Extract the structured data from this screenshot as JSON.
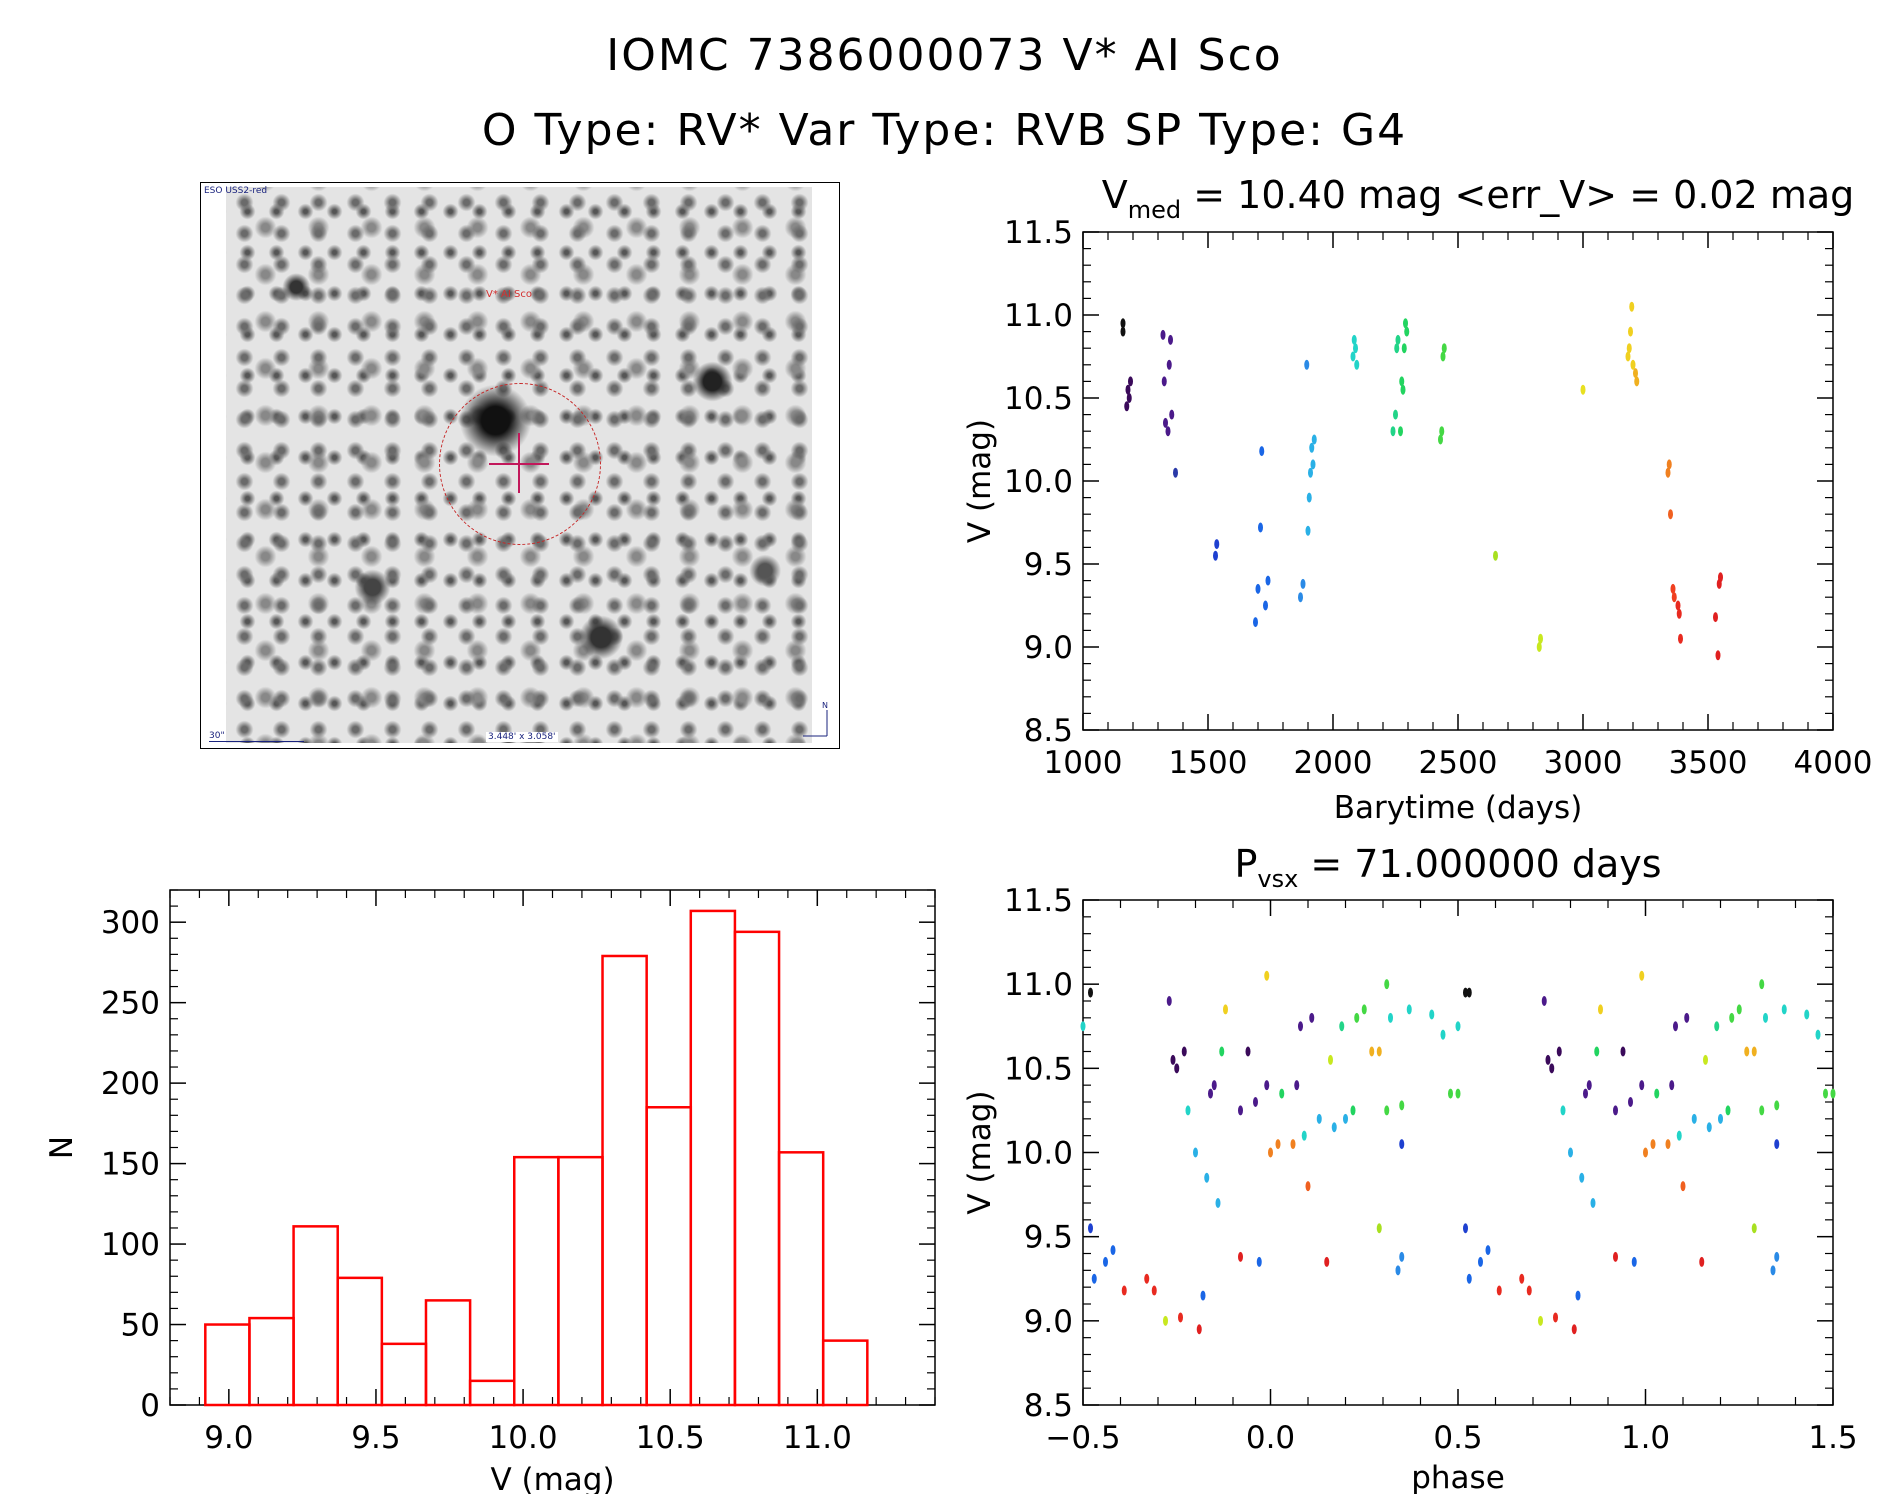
{
  "figure": {
    "title_line1": "IOMC 7386000073    V* AI Sco",
    "title_line2": "O Type: RV*   Var Type: RVB   SP Type: G4"
  },
  "finder_chart": {
    "header": "ESO USS2-red",
    "object_label": "V* AI Sco",
    "scale_label": "30\"",
    "fov_label": "3.448' x 3.058'",
    "north_label": "N"
  },
  "chart_data": [
    {
      "type": "scatter",
      "panel": "light-curve",
      "title_prefix": "V",
      "title_sub": "med",
      "title_rest": " = 10.40 mag <err_V> = 0.02 mag",
      "xlabel": "Barytime (days)",
      "ylabel": "V (mag)",
      "xlim": [
        1000,
        4000
      ],
      "ylim": [
        11.5,
        8.5
      ],
      "y_inverted": true,
      "xticks": [
        "1000",
        "1500",
        "2000",
        "2500",
        "3000",
        "3500",
        "4000"
      ],
      "yticks": [
        "8.5",
        "9.0",
        "9.5",
        "10.0",
        "10.5",
        "11.0",
        "11.5"
      ],
      "grid": false,
      "colors_note": "points colored by time, purple (early) to red (late)",
      "points": [
        [
          1160,
          10.95,
          "#111111"
        ],
        [
          1160,
          10.9,
          "#111111"
        ],
        [
          1175,
          10.45,
          "#3a0a5a"
        ],
        [
          1180,
          10.55,
          "#3a0a5a"
        ],
        [
          1185,
          10.5,
          "#3a0a5a"
        ],
        [
          1190,
          10.6,
          "#3a0a5a"
        ],
        [
          1320,
          10.88,
          "#4b1a8a"
        ],
        [
          1325,
          10.6,
          "#4b1a8a"
        ],
        [
          1330,
          10.35,
          "#4b1a8a"
        ],
        [
          1340,
          10.3,
          "#4b1a8a"
        ],
        [
          1345,
          10.7,
          "#4b1a8a"
        ],
        [
          1350,
          10.85,
          "#4b1a8a"
        ],
        [
          1355,
          10.4,
          "#4b1a8a"
        ],
        [
          1370,
          10.05,
          "#2a3aa8"
        ],
        [
          1530,
          9.55,
          "#1e40d0"
        ],
        [
          1535,
          9.62,
          "#1e40d0"
        ],
        [
          1690,
          9.15,
          "#1a66e6"
        ],
        [
          1700,
          9.35,
          "#1a66e6"
        ],
        [
          1710,
          9.72,
          "#1a66e6"
        ],
        [
          1715,
          10.18,
          "#1a66e6"
        ],
        [
          1730,
          9.25,
          "#1a66e6"
        ],
        [
          1740,
          9.4,
          "#1a66e6"
        ],
        [
          1870,
          9.3,
          "#2a8ae6"
        ],
        [
          1880,
          9.38,
          "#2a8ae6"
        ],
        [
          1895,
          10.7,
          "#2a8ae6"
        ],
        [
          1900,
          9.7,
          "#2ab0e6"
        ],
        [
          1905,
          9.9,
          "#2ab0e6"
        ],
        [
          1910,
          10.05,
          "#2ab0e6"
        ],
        [
          1915,
          10.2,
          "#2ab0e6"
        ],
        [
          1920,
          10.1,
          "#2ab0e6"
        ],
        [
          1925,
          10.25,
          "#2ab0e6"
        ],
        [
          2080,
          10.75,
          "#22d4c8"
        ],
        [
          2085,
          10.85,
          "#22d4c8"
        ],
        [
          2090,
          10.8,
          "#22d4c8"
        ],
        [
          2095,
          10.7,
          "#22d4c8"
        ],
        [
          2240,
          10.3,
          "#22d488"
        ],
        [
          2250,
          10.4,
          "#22d488"
        ],
        [
          2255,
          10.8,
          "#22d488"
        ],
        [
          2260,
          10.85,
          "#22d488"
        ],
        [
          2270,
          10.3,
          "#22d460"
        ],
        [
          2275,
          10.6,
          "#22d460"
        ],
        [
          2280,
          10.55,
          "#22d460"
        ],
        [
          2285,
          10.8,
          "#22d460"
        ],
        [
          2290,
          10.95,
          "#22d460"
        ],
        [
          2295,
          10.9,
          "#22d460"
        ],
        [
          2430,
          10.25,
          "#44d844"
        ],
        [
          2435,
          10.3,
          "#44d844"
        ],
        [
          2440,
          10.75,
          "#44d844"
        ],
        [
          2445,
          10.8,
          "#44d844"
        ],
        [
          2650,
          9.55,
          "#a8e020"
        ],
        [
          2825,
          9.0,
          "#c8e820"
        ],
        [
          2830,
          9.05,
          "#c8e820"
        ],
        [
          3000,
          10.55,
          "#e8e020"
        ],
        [
          3180,
          10.75,
          "#f0d020"
        ],
        [
          3185,
          10.8,
          "#f0d020"
        ],
        [
          3190,
          10.9,
          "#f0d020"
        ],
        [
          3195,
          11.05,
          "#f0d020"
        ],
        [
          3200,
          10.7,
          "#f0d020"
        ],
        [
          3210,
          10.65,
          "#f0b020"
        ],
        [
          3215,
          10.6,
          "#f0b020"
        ],
        [
          3340,
          10.05,
          "#f08020"
        ],
        [
          3345,
          10.1,
          "#f08020"
        ],
        [
          3350,
          9.8,
          "#f06020"
        ],
        [
          3360,
          9.35,
          "#f04020"
        ],
        [
          3365,
          9.3,
          "#f04020"
        ],
        [
          3380,
          9.25,
          "#e82a20"
        ],
        [
          3385,
          9.2,
          "#e82a20"
        ],
        [
          3390,
          9.05,
          "#e82a20"
        ],
        [
          3530,
          9.18,
          "#e02020"
        ],
        [
          3540,
          8.95,
          "#e02020"
        ],
        [
          3545,
          9.38,
          "#e02020"
        ],
        [
          3550,
          9.42,
          "#e02020"
        ]
      ]
    },
    {
      "type": "bar",
      "panel": "histogram",
      "xlabel": "V (mag)",
      "ylabel": "N",
      "xlim": [
        8.8,
        11.4
      ],
      "ylim": [
        0,
        320
      ],
      "xticks": [
        "9.0",
        "9.5",
        "10.0",
        "10.5",
        "11.0"
      ],
      "yticks": [
        "0",
        "50",
        "100",
        "150",
        "200",
        "250",
        "300"
      ],
      "bar_color": "#ff0000",
      "grid": false,
      "bin_edges": [
        8.92,
        9.07,
        9.22,
        9.37,
        9.52,
        9.67,
        9.82,
        9.97,
        10.12,
        10.27,
        10.42,
        10.57,
        10.72,
        10.87,
        11.02,
        11.17
      ],
      "values": [
        50,
        54,
        111,
        79,
        38,
        65,
        15,
        154,
        154,
        279,
        185,
        307,
        294,
        157,
        40
      ]
    },
    {
      "type": "scatter",
      "panel": "phased",
      "title_prefix": "P",
      "title_sub": "vsx",
      "title_rest": " = 71.000000 days",
      "xlabel": "phase",
      "ylabel": "V (mag)",
      "xlim": [
        -0.5,
        1.5
      ],
      "ylim": [
        11.5,
        8.5
      ],
      "y_inverted": true,
      "xticks": [
        "−0.5",
        "0.0",
        "0.5",
        "1.0",
        "1.5"
      ],
      "yticks": [
        "8.5",
        "9.0",
        "9.5",
        "10.0",
        "10.5",
        "11.0",
        "11.5"
      ],
      "grid": false,
      "points": [
        [
          -0.48,
          9.55,
          "#1e40d0"
        ],
        [
          -0.47,
          9.25,
          "#1a66e6"
        ],
        [
          -0.44,
          9.35,
          "#1a66e6"
        ],
        [
          -0.42,
          9.42,
          "#1a66e6"
        ],
        [
          -0.39,
          9.18,
          "#e82a20"
        ],
        [
          -0.33,
          9.25,
          "#e82a20"
        ],
        [
          -0.31,
          9.18,
          "#e82a20"
        ],
        [
          -0.28,
          9.0,
          "#c8e820"
        ],
        [
          -0.24,
          9.02,
          "#e82a20"
        ],
        [
          -0.19,
          8.95,
          "#e02020"
        ],
        [
          -0.18,
          9.15,
          "#1a66e6"
        ],
        [
          -0.08,
          9.38,
          "#e02020"
        ],
        [
          -0.03,
          9.35,
          "#1a66e6"
        ],
        [
          -0.5,
          10.75,
          "#22d4c8"
        ],
        [
          -0.48,
          10.95,
          "#111111"
        ],
        [
          -0.27,
          10.9,
          "#4b1a8a"
        ],
        [
          -0.26,
          10.55,
          "#3a0a5a"
        ],
        [
          -0.25,
          10.5,
          "#3a0a5a"
        ],
        [
          -0.23,
          10.6,
          "#3a0a5a"
        ],
        [
          -0.22,
          10.25,
          "#22d4c8"
        ],
        [
          -0.2,
          10.0,
          "#2ab0e6"
        ],
        [
          -0.17,
          9.85,
          "#2ab0e6"
        ],
        [
          -0.14,
          9.7,
          "#2ab0e6"
        ],
        [
          -0.16,
          10.35,
          "#4b1a8a"
        ],
        [
          -0.15,
          10.4,
          "#4b1a8a"
        ],
        [
          -0.13,
          10.6,
          "#22d460"
        ],
        [
          -0.12,
          10.85,
          "#f0d020"
        ],
        [
          -0.08,
          10.25,
          "#4b1a8a"
        ],
        [
          -0.06,
          10.6,
          "#3a0a5a"
        ],
        [
          -0.04,
          10.3,
          "#4b1a8a"
        ],
        [
          -0.01,
          10.4,
          "#4b1a8a"
        ],
        [
          -0.01,
          11.05,
          "#f0d020"
        ],
        [
          0.0,
          10.0,
          "#f08020"
        ],
        [
          0.02,
          10.05,
          "#f08020"
        ],
        [
          0.03,
          10.35,
          "#22d460"
        ],
        [
          0.06,
          10.05,
          "#f08020"
        ],
        [
          0.07,
          10.4,
          "#4b1a8a"
        ],
        [
          0.08,
          10.75,
          "#4b1a8a"
        ],
        [
          0.09,
          10.1,
          "#22d4c8"
        ],
        [
          0.1,
          9.8,
          "#f06020"
        ],
        [
          0.11,
          10.8,
          "#4b1a8a"
        ],
        [
          0.13,
          10.2,
          "#2ab0e6"
        ],
        [
          0.15,
          9.35,
          "#e02020"
        ],
        [
          0.16,
          10.55,
          "#c8e820"
        ],
        [
          0.17,
          10.15,
          "#2ab0e6"
        ],
        [
          0.19,
          10.75,
          "#22d488"
        ],
        [
          0.2,
          10.2,
          "#2ab0e6"
        ],
        [
          0.22,
          10.25,
          "#22d460"
        ],
        [
          0.23,
          10.8,
          "#44d844"
        ],
        [
          0.25,
          10.85,
          "#44d844"
        ],
        [
          0.27,
          10.6,
          "#f0b020"
        ],
        [
          0.29,
          10.6,
          "#f0b020"
        ],
        [
          0.29,
          9.55,
          "#a8e020"
        ],
        [
          0.31,
          10.25,
          "#44d844"
        ],
        [
          0.32,
          10.8,
          "#22d4c8"
        ],
        [
          0.31,
          11.0,
          "#44d844"
        ],
        [
          0.34,
          9.3,
          "#2a8ae6"
        ],
        [
          0.35,
          9.38,
          "#2a8ae6"
        ],
        [
          0.35,
          10.05,
          "#1e40d0"
        ],
        [
          0.35,
          10.28,
          "#44d844"
        ],
        [
          0.37,
          10.85,
          "#22d4c8"
        ],
        [
          0.43,
          10.82,
          "#22d4c8"
        ],
        [
          0.46,
          10.7,
          "#22d4c8"
        ],
        [
          0.48,
          10.35,
          "#44d844"
        ],
        [
          0.5,
          10.35,
          "#44d844"
        ],
        [
          0.53,
          10.95,
          "#111111"
        ]
      ],
      "repeat_offset": 1.0
    }
  ]
}
